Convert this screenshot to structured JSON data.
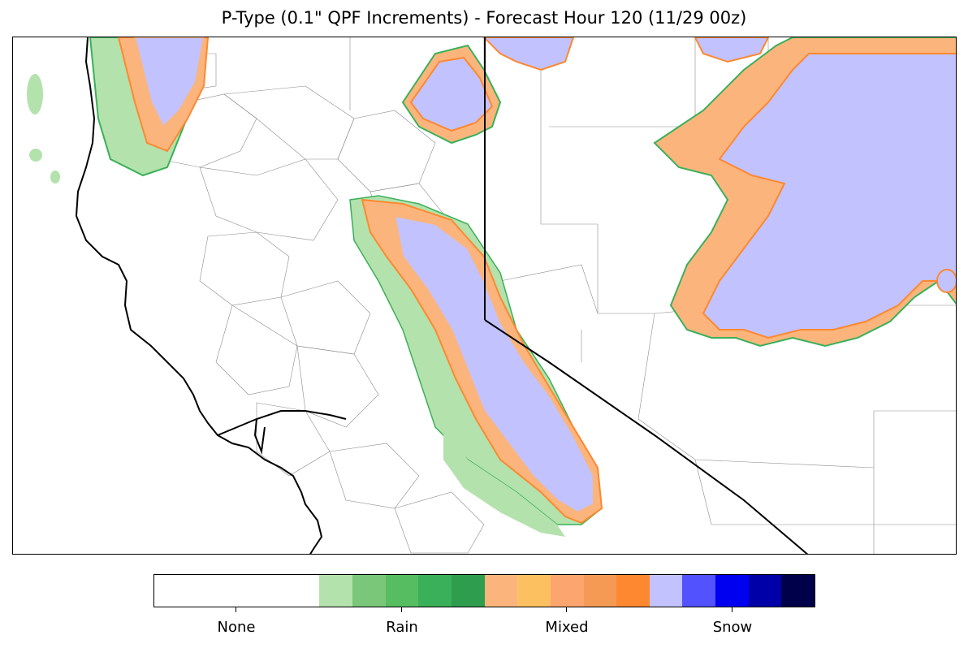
{
  "title": "P-Type (0.1\" QPF Increments) - Forecast Hour 120 (11/29 00z)",
  "colorbar": {
    "categories": [
      {
        "name": "None",
        "colors": [
          "#ffffff"
        ]
      },
      {
        "name": "Rain",
        "colors": [
          "#b3e2ac",
          "#7ac77a",
          "#56be60",
          "#3bb05a",
          "#2e9e4e"
        ]
      },
      {
        "name": "Mixed",
        "colors": [
          "#fbb57c",
          "#fdc060",
          "#fca56e",
          "#f59a55",
          "#fe8830"
        ]
      },
      {
        "name": "Snow",
        "colors": [
          "#c2c2fe",
          "#5252fe",
          "#0000f0",
          "#0000a8",
          "#00004a"
        ]
      }
    ]
  },
  "map": {
    "region": "Northern California / Nevada",
    "colors": {
      "coast": "#000000",
      "state_line": "#000000",
      "county_line": "#7f7f7f",
      "rain": "#b3e2ac",
      "rain_edge": "#3bb05a",
      "mixed": "#fbb57c",
      "mixed_edge": "#fe8830",
      "snow": "#c2c2fe"
    }
  }
}
